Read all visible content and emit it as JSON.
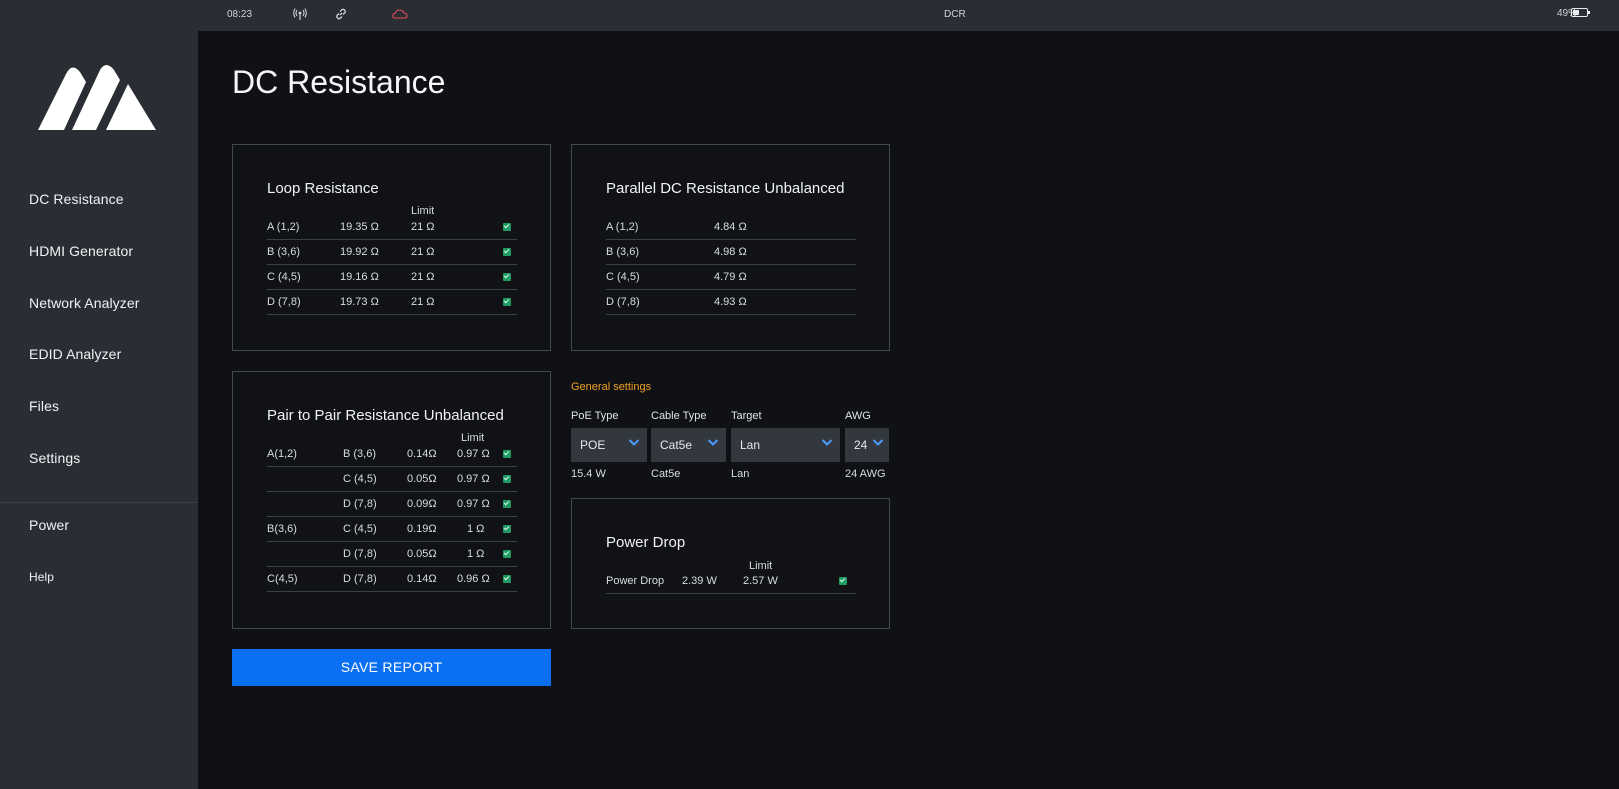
{
  "statusbar": {
    "time": "08:23",
    "title": "DCR",
    "battery": "49%"
  },
  "sidebar": {
    "items": [
      {
        "label": "DC Resistance"
      },
      {
        "label": "HDMI Generator"
      },
      {
        "label": "Network Analyzer"
      },
      {
        "label": "EDID Analyzer"
      },
      {
        "label": "Files"
      },
      {
        "label": "Settings"
      },
      {
        "label": "Power"
      },
      {
        "label": "Help"
      }
    ]
  },
  "page": {
    "title": "DC Resistance"
  },
  "loop": {
    "title": "Loop Resistance",
    "limit_label": "Limit",
    "rows": [
      {
        "pair": "A (1,2)",
        "value": "19.35 Ω",
        "limit": "21 Ω"
      },
      {
        "pair": "B (3,6)",
        "value": "19.92 Ω",
        "limit": "21 Ω"
      },
      {
        "pair": "C (4,5)",
        "value": "19.16 Ω",
        "limit": "21 Ω"
      },
      {
        "pair": "D (7,8)",
        "value": "19.73 Ω",
        "limit": "21 Ω"
      }
    ]
  },
  "parallel": {
    "title": "Parallel DC Resistance Unbalanced",
    "rows": [
      {
        "pair": "A (1,2)",
        "value": "4.84 Ω"
      },
      {
        "pair": "B (3,6)",
        "value": "4.98 Ω"
      },
      {
        "pair": "C (4,5)",
        "value": "4.79 Ω"
      },
      {
        "pair": "D (7,8)",
        "value": "4.93 Ω"
      }
    ]
  },
  "pairtopair": {
    "title": "Pair to Pair Resistance Unbalanced",
    "limit_label": "Limit",
    "rows": [
      {
        "from": "A(1,2)",
        "to": "B (3,6)",
        "value": "0.14Ω",
        "limit": "0.97 Ω"
      },
      {
        "from": "",
        "to": "C (4,5)",
        "value": "0.05Ω",
        "limit": "0.97 Ω"
      },
      {
        "from": "",
        "to": "D (7,8)",
        "value": "0.09Ω",
        "limit": "0.97 Ω"
      },
      {
        "from": "B(3,6)",
        "to": "C (4,5)",
        "value": "0.19Ω",
        "limit": "1 Ω"
      },
      {
        "from": "",
        "to": "D (7,8)",
        "value": "0.05Ω",
        "limit": "1 Ω"
      },
      {
        "from": "C(4,5)",
        "to": "D (7,8)",
        "value": "0.14Ω",
        "limit": "0.96 Ω"
      }
    ]
  },
  "general": {
    "title": "General settings",
    "poe": {
      "label": "PoE Type",
      "value": "POE",
      "sub": "15.4 W"
    },
    "cable": {
      "label": "Cable Type",
      "value": "Cat5e",
      "sub": "Cat5e"
    },
    "target": {
      "label": "Target",
      "value": "Lan",
      "sub": "Lan"
    },
    "awg": {
      "label": "AWG",
      "value": "24",
      "sub": "24 AWG"
    }
  },
  "powerdrop": {
    "title": "Power Drop",
    "limit_label": "Limit",
    "label": "Power Drop",
    "value": "2.39 W",
    "limit": "2.57 W"
  },
  "save_label": "SAVE REPORT",
  "colors": {
    "accent": "#0a6ff0",
    "warning": "#f0a020",
    "pass": "#1f9a62"
  }
}
